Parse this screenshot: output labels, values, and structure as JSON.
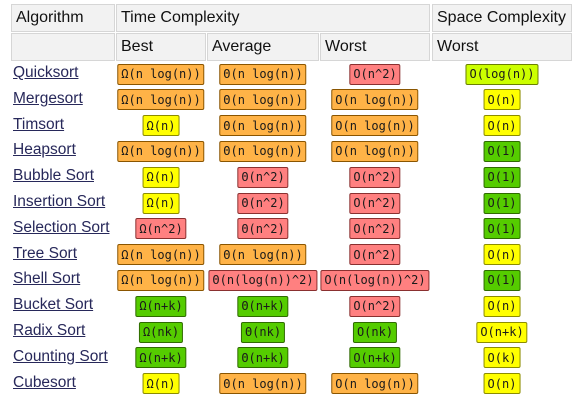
{
  "header": {
    "algorithm": "Algorithm",
    "time_complexity": "Time Complexity",
    "space_complexity": "Space Complexity",
    "best": "Best",
    "average": "Average",
    "worst": "Worst",
    "space_worst": "Worst"
  },
  "colors": {
    "yellow": "#ffff00",
    "orange": "#ffb347",
    "red": "#ff8080",
    "green": "#55cc00",
    "lime": "#ccff00",
    "header_bg": "#f2f2f2",
    "link": "#27285a"
  },
  "rows": [
    {
      "name": "Quicksort",
      "best": {
        "t": "Ω(n log(n))",
        "c": "orange"
      },
      "avg": {
        "t": "Θ(n log(n))",
        "c": "orange"
      },
      "worst": {
        "t": "O(n^2)",
        "c": "red"
      },
      "space": {
        "t": "O(log(n))",
        "c": "lime"
      }
    },
    {
      "name": "Mergesort",
      "best": {
        "t": "Ω(n log(n))",
        "c": "orange"
      },
      "avg": {
        "t": "Θ(n log(n))",
        "c": "orange"
      },
      "worst": {
        "t": "O(n log(n))",
        "c": "orange"
      },
      "space": {
        "t": "O(n)",
        "c": "yellow"
      }
    },
    {
      "name": "Timsort",
      "best": {
        "t": "Ω(n)",
        "c": "yellow"
      },
      "avg": {
        "t": "Θ(n log(n))",
        "c": "orange"
      },
      "worst": {
        "t": "O(n log(n))",
        "c": "orange"
      },
      "space": {
        "t": "O(n)",
        "c": "yellow"
      }
    },
    {
      "name": "Heapsort",
      "best": {
        "t": "Ω(n log(n))",
        "c": "orange"
      },
      "avg": {
        "t": "Θ(n log(n))",
        "c": "orange"
      },
      "worst": {
        "t": "O(n log(n))",
        "c": "orange"
      },
      "space": {
        "t": "O(1)",
        "c": "green"
      }
    },
    {
      "name": "Bubble Sort",
      "best": {
        "t": "Ω(n)",
        "c": "yellow"
      },
      "avg": {
        "t": "Θ(n^2)",
        "c": "red"
      },
      "worst": {
        "t": "O(n^2)",
        "c": "red"
      },
      "space": {
        "t": "O(1)",
        "c": "green"
      }
    },
    {
      "name": "Insertion Sort",
      "best": {
        "t": "Ω(n)",
        "c": "yellow"
      },
      "avg": {
        "t": "Θ(n^2)",
        "c": "red"
      },
      "worst": {
        "t": "O(n^2)",
        "c": "red"
      },
      "space": {
        "t": "O(1)",
        "c": "green"
      }
    },
    {
      "name": "Selection Sort",
      "best": {
        "t": "Ω(n^2)",
        "c": "red"
      },
      "avg": {
        "t": "Θ(n^2)",
        "c": "red"
      },
      "worst": {
        "t": "O(n^2)",
        "c": "red"
      },
      "space": {
        "t": "O(1)",
        "c": "green"
      }
    },
    {
      "name": "Tree Sort",
      "best": {
        "t": "Ω(n log(n))",
        "c": "orange"
      },
      "avg": {
        "t": "Θ(n log(n))",
        "c": "orange"
      },
      "worst": {
        "t": "O(n^2)",
        "c": "red"
      },
      "space": {
        "t": "O(n)",
        "c": "yellow"
      }
    },
    {
      "name": "Shell Sort",
      "best": {
        "t": "Ω(n log(n))",
        "c": "orange"
      },
      "avg": {
        "t": "Θ(n(log(n))^2)",
        "c": "red"
      },
      "worst": {
        "t": "O(n(log(n))^2)",
        "c": "red"
      },
      "space": {
        "t": "O(1)",
        "c": "green"
      }
    },
    {
      "name": "Bucket Sort",
      "best": {
        "t": "Ω(n+k)",
        "c": "green"
      },
      "avg": {
        "t": "Θ(n+k)",
        "c": "green"
      },
      "worst": {
        "t": "O(n^2)",
        "c": "red"
      },
      "space": {
        "t": "O(n)",
        "c": "yellow"
      }
    },
    {
      "name": "Radix Sort",
      "best": {
        "t": "Ω(nk)",
        "c": "green"
      },
      "avg": {
        "t": "Θ(nk)",
        "c": "green"
      },
      "worst": {
        "t": "O(nk)",
        "c": "green"
      },
      "space": {
        "t": "O(n+k)",
        "c": "yellow"
      }
    },
    {
      "name": "Counting Sort",
      "best": {
        "t": "Ω(n+k)",
        "c": "green"
      },
      "avg": {
        "t": "Θ(n+k)",
        "c": "green"
      },
      "worst": {
        "t": "O(n+k)",
        "c": "green"
      },
      "space": {
        "t": "O(k)",
        "c": "yellow"
      }
    },
    {
      "name": "Cubesort",
      "best": {
        "t": "Ω(n)",
        "c": "yellow"
      },
      "avg": {
        "t": "Θ(n log(n))",
        "c": "orange"
      },
      "worst": {
        "t": "O(n log(n))",
        "c": "orange"
      },
      "space": {
        "t": "O(n)",
        "c": "yellow"
      }
    }
  ]
}
